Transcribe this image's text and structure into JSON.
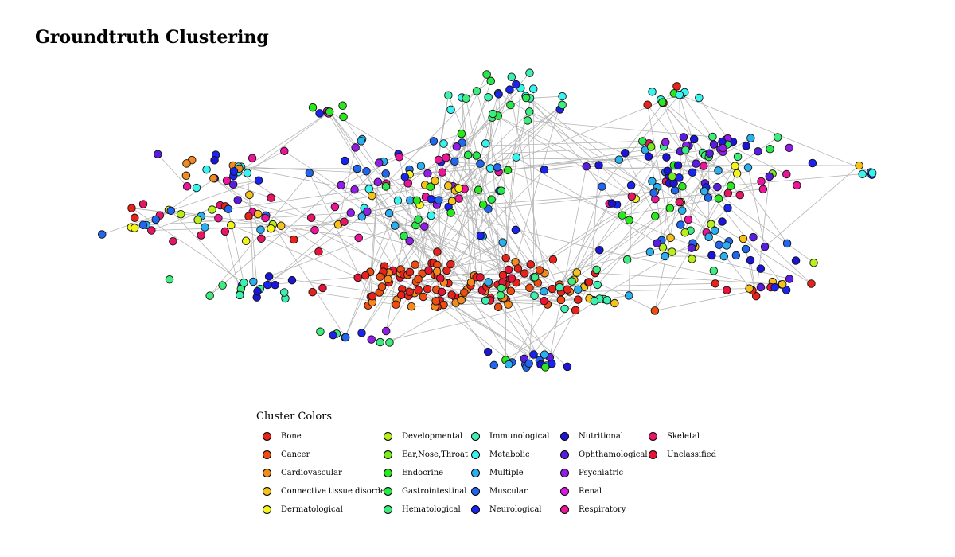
{
  "title": "Groundtruth Clustering",
  "legend": {
    "title": "Cluster Colors",
    "items": [
      {
        "label": "Bone",
        "color": "#e8231c"
      },
      {
        "label": "Cancer",
        "color": "#ee4d12"
      },
      {
        "label": "Cardiovascular",
        "color": "#f28a1e"
      },
      {
        "label": "Connective tissue disorder",
        "color": "#f6c21a"
      },
      {
        "label": "Dermatological",
        "color": "#f4f41d"
      },
      {
        "label": "Developmental",
        "color": "#b7ef1d"
      },
      {
        "label": "Ear,Nose,Throat",
        "color": "#78ea1e"
      },
      {
        "label": "Endocrine",
        "color": "#2be81e"
      },
      {
        "label": "Gastrointestinal",
        "color": "#28e84c"
      },
      {
        "label": "Hematological",
        "color": "#3ded7d"
      },
      {
        "label": "Immunological",
        "color": "#3ef0b0"
      },
      {
        "label": "Metabolic",
        "color": "#37f5ee"
      },
      {
        "label": "Multiple",
        "color": "#2cafef"
      },
      {
        "label": "Muscular",
        "color": "#2166ee"
      },
      {
        "label": "Neurological",
        "color": "#1a24ee"
      },
      {
        "label": "Nutritional",
        "color": "#1c15d6"
      },
      {
        "label": "Ophthamological",
        "color": "#5a1de0"
      },
      {
        "label": "Psychiatric",
        "color": "#921de6"
      },
      {
        "label": "Renal",
        "color": "#df17e6"
      },
      {
        "label": "Respiratory",
        "color": "#ea1597"
      },
      {
        "label": "Skeletal",
        "color": "#e81566"
      },
      {
        "label": "Unclassified",
        "color": "#e81438"
      }
    ]
  }
}
